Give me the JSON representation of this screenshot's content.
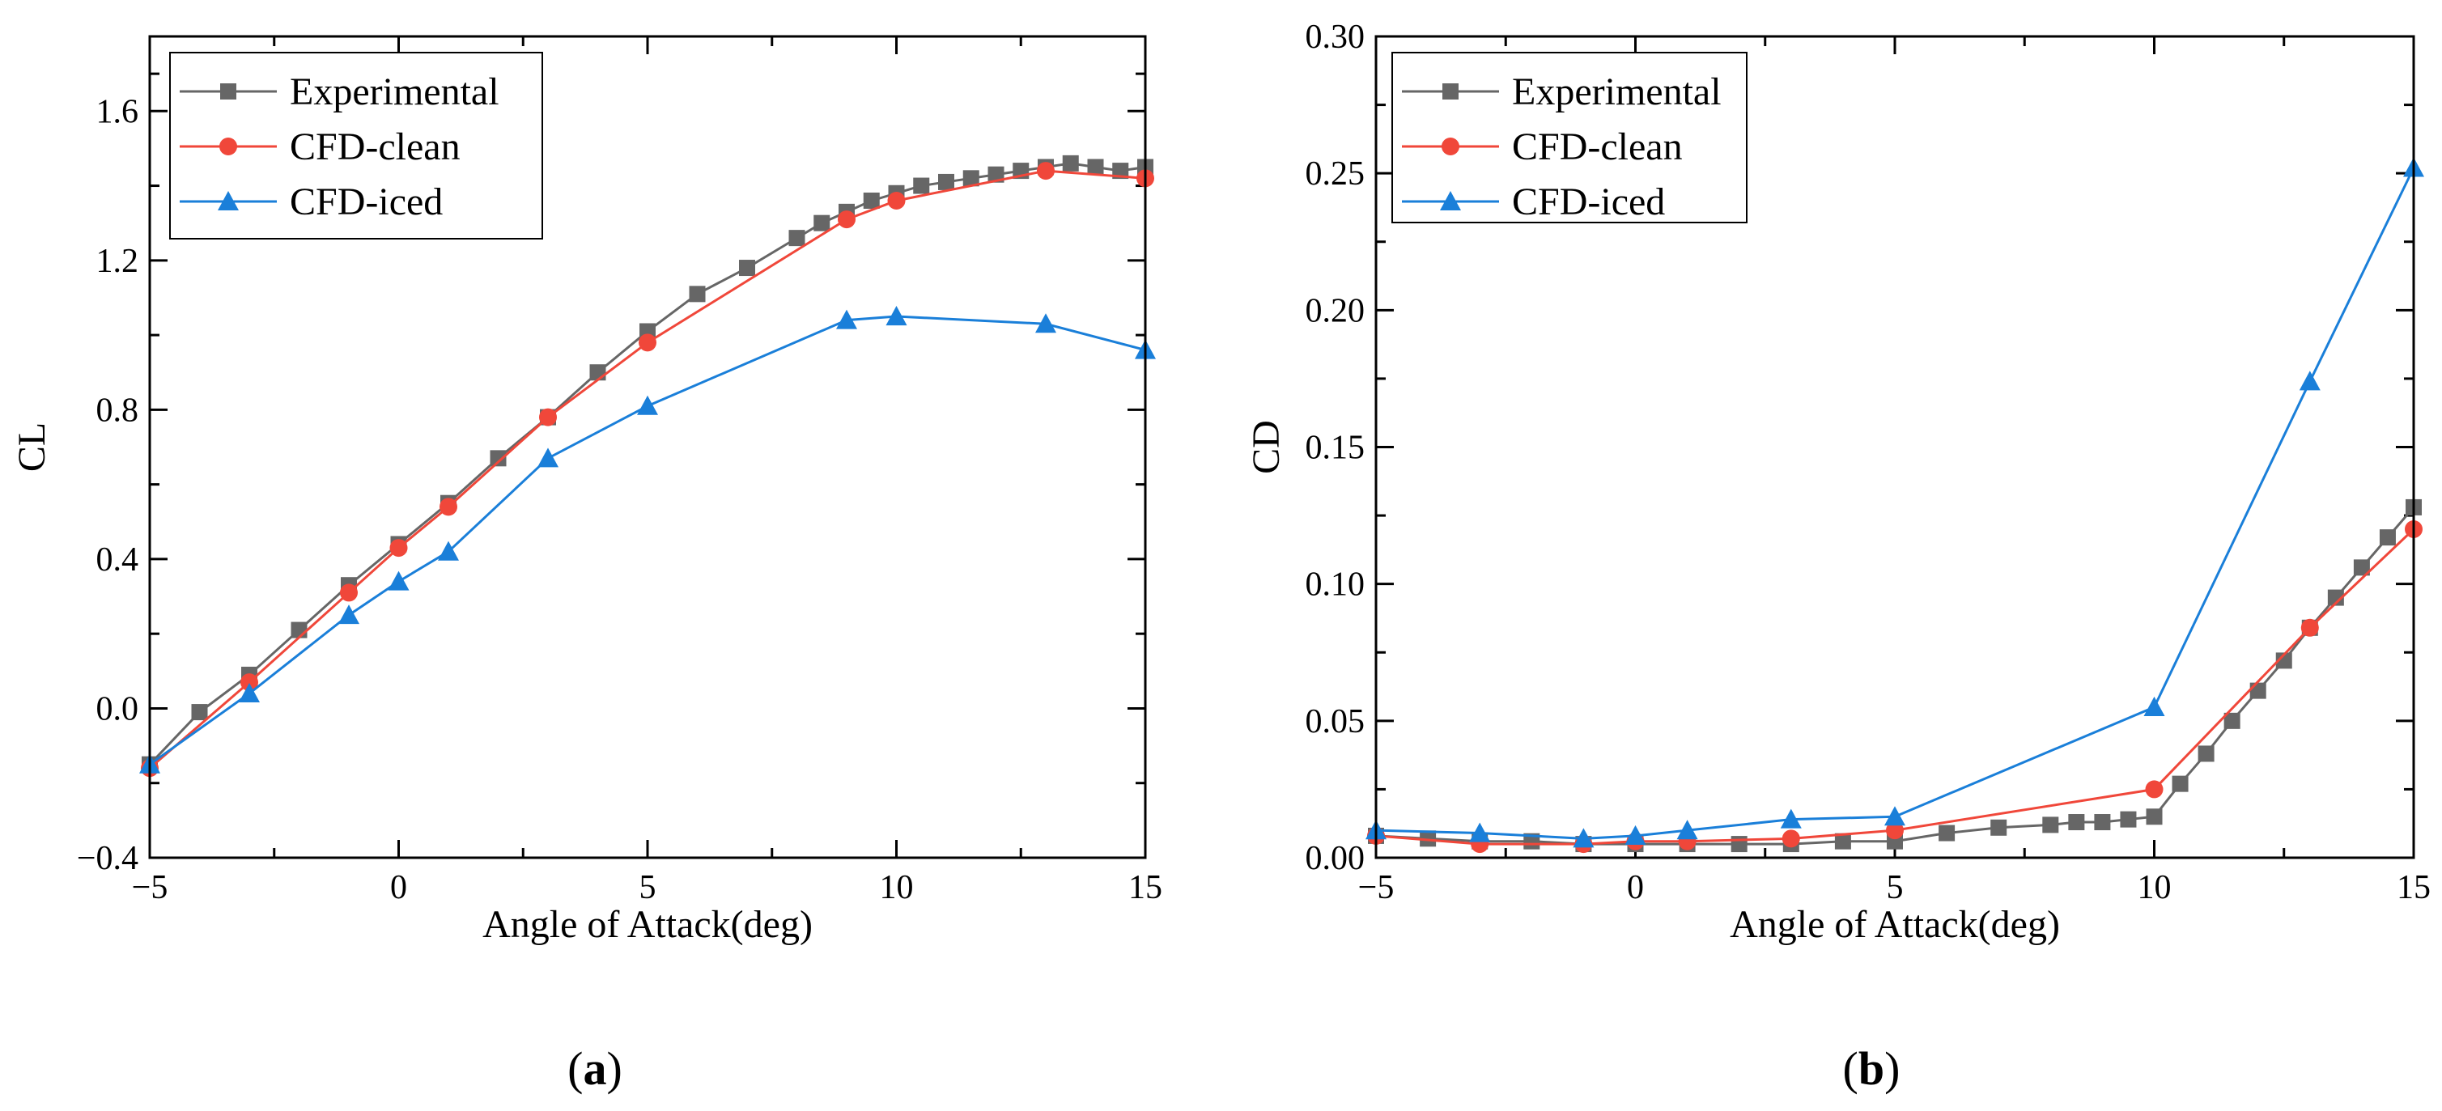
{
  "chart_data": [
    {
      "type": "line",
      "panel_label": "a",
      "xlabel": "Angle of Attack(deg)",
      "ylabel": "CL",
      "xlim": [
        -5,
        15
      ],
      "ylim": [
        -0.4,
        1.8
      ],
      "xticks": [
        -5,
        0,
        5,
        10,
        15
      ],
      "yticks": [
        -0.4,
        0.0,
        0.4,
        0.8,
        1.2,
        1.6
      ],
      "xtick_labels": [
        "−5",
        "0",
        "5",
        "10",
        "15"
      ],
      "ytick_labels": [
        "−0.4",
        "0.0",
        "0.4",
        "0.8",
        "1.2",
        "1.6"
      ],
      "legend_position": "top-left",
      "series": [
        {
          "name": "Experimental",
          "color": "#666666",
          "marker": "square",
          "x": [
            -5,
            -4,
            -3,
            -2,
            -1,
            0,
            1,
            2,
            3,
            4,
            5,
            6,
            7,
            8,
            8.5,
            9,
            9.5,
            10,
            10.5,
            11,
            11.5,
            12,
            12.5,
            13,
            13.5,
            14,
            14.5,
            15
          ],
          "y": [
            -0.15,
            -0.01,
            0.09,
            0.21,
            0.33,
            0.44,
            0.55,
            0.67,
            0.78,
            0.9,
            1.01,
            1.11,
            1.18,
            1.26,
            1.3,
            1.33,
            1.36,
            1.38,
            1.4,
            1.41,
            1.42,
            1.43,
            1.44,
            1.45,
            1.46,
            1.45,
            1.44,
            1.45
          ]
        },
        {
          "name": "CFD-clean",
          "color": "#f0473a",
          "marker": "circle",
          "x": [
            -5,
            -3,
            -1,
            0,
            1,
            3,
            5,
            9,
            10,
            13,
            15
          ],
          "y": [
            -0.16,
            0.07,
            0.31,
            0.43,
            0.54,
            0.78,
            0.98,
            1.31,
            1.36,
            1.44,
            1.42
          ]
        },
        {
          "name": "CFD-iced",
          "color": "#1a7fd9",
          "marker": "triangle",
          "x": [
            -5,
            -3,
            -1,
            0,
            1,
            3,
            5,
            9,
            10,
            13,
            15
          ],
          "y": [
            -0.15,
            0.04,
            0.25,
            0.34,
            0.42,
            0.67,
            0.81,
            1.04,
            1.05,
            1.03,
            0.96
          ]
        }
      ]
    },
    {
      "type": "line",
      "panel_label": "b",
      "xlabel": "Angle of Attack(deg)",
      "ylabel": "CD",
      "xlim": [
        -5,
        15
      ],
      "ylim": [
        0,
        0.3
      ],
      "xticks": [
        -5,
        0,
        5,
        10,
        15
      ],
      "yticks": [
        0.0,
        0.05,
        0.1,
        0.15,
        0.2,
        0.25,
        0.3
      ],
      "xtick_labels": [
        "−5",
        "0",
        "5",
        "10",
        "15"
      ],
      "ytick_labels": [
        "0.00",
        "0.05",
        "0.10",
        "0.15",
        "0.20",
        "0.25",
        "0.30"
      ],
      "legend_position": "top-left",
      "series": [
        {
          "name": "Experimental",
          "color": "#666666",
          "marker": "square",
          "x": [
            -5,
            -4,
            -3,
            -2,
            -1,
            0,
            1,
            2,
            3,
            4,
            5,
            6,
            7,
            8,
            8.5,
            9,
            9.5,
            10,
            10.5,
            11,
            11.5,
            12,
            12.5,
            13,
            13.5,
            14,
            14.5,
            15
          ],
          "y": [
            0.008,
            0.007,
            0.006,
            0.006,
            0.005,
            0.005,
            0.005,
            0.005,
            0.005,
            0.006,
            0.006,
            0.009,
            0.011,
            0.012,
            0.013,
            0.013,
            0.014,
            0.015,
            0.027,
            0.038,
            0.05,
            0.061,
            0.072,
            0.084,
            0.095,
            0.106,
            0.117,
            0.128
          ]
        },
        {
          "name": "CFD-clean",
          "color": "#f0473a",
          "marker": "circle",
          "x": [
            -5,
            -3,
            -1,
            0,
            1,
            3,
            5,
            10,
            13,
            15
          ],
          "y": [
            0.008,
            0.005,
            0.005,
            0.006,
            0.006,
            0.007,
            0.01,
            0.025,
            0.084,
            0.12
          ]
        },
        {
          "name": "CFD-iced",
          "color": "#1a7fd9",
          "marker": "triangle",
          "x": [
            -5,
            -3,
            -1,
            0,
            1,
            3,
            5,
            10,
            13,
            15
          ],
          "y": [
            0.01,
            0.009,
            0.007,
            0.008,
            0.01,
            0.014,
            0.015,
            0.055,
            0.174,
            0.252
          ]
        }
      ]
    }
  ]
}
